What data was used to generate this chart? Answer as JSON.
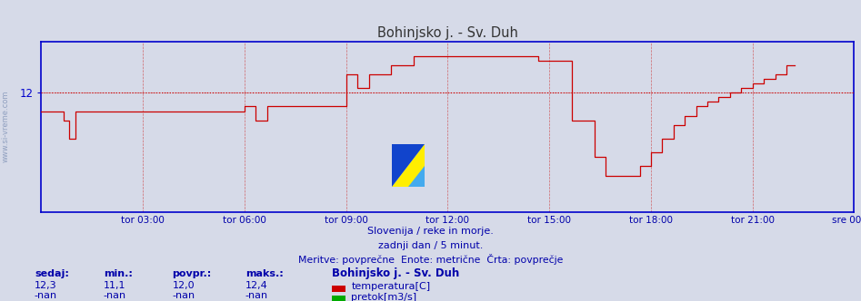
{
  "title": "Bohinjsko j. - Sv. Duh",
  "bg_color": "#d6dae8",
  "plot_bg_color": "#d6dae8",
  "line_color": "#cc0000",
  "avg_line_color": "#cc0000",
  "avg_value": 12.0,
  "axis_color": "#0000cc",
  "grid_color_v": "#cc3333",
  "grid_color_h": "#cc3333",
  "text_color": "#0000aa",
  "ymin": 10.7,
  "ymax": 12.55,
  "xmin": 0,
  "xmax": 288,
  "ytick_val": 12.0,
  "ytick_label": "12",
  "xtick_positions": [
    36,
    72,
    108,
    144,
    180,
    216,
    252,
    288
  ],
  "xtick_labels": [
    "tor 03:00",
    "tor 06:00",
    "tor 09:00",
    "tor 12:00",
    "tor 15:00",
    "tor 18:00",
    "tor 21:00",
    "sre 00:00"
  ],
  "subtitle1": "Slovenija / reke in morje.",
  "subtitle2": "zadnji dan / 5 minut.",
  "subtitle3": "Meritve: povprečne  Enote: metrične  Črta: povprečje",
  "legend_title": "Bohinjsko j. - Sv. Duh",
  "legend_items": [
    {
      "label": "temperatura[C]",
      "color": "#cc0000"
    },
    {
      "label": "pretok[m3/s]",
      "color": "#00aa00"
    }
  ],
  "stats_headers": [
    "sedaj:",
    "min.:",
    "povpr.:",
    "maks.:"
  ],
  "stats_temp": [
    "12,3",
    "11,1",
    "12,0",
    "12,4"
  ],
  "stats_flow": [
    "-nan",
    "-nan",
    "-nan",
    "-nan"
  ],
  "watermark": "www.si-vreme.com",
  "temp_data": [
    11.8,
    11.8,
    11.8,
    11.8,
    11.8,
    11.8,
    11.8,
    11.8,
    11.7,
    11.7,
    11.5,
    11.5,
    11.8,
    11.8,
    11.8,
    11.8,
    11.8,
    11.8,
    11.8,
    11.8,
    11.8,
    11.8,
    11.8,
    11.8,
    11.8,
    11.8,
    11.8,
    11.8,
    11.8,
    11.8,
    11.8,
    11.8,
    11.8,
    11.8,
    11.8,
    11.8,
    11.8,
    11.8,
    11.8,
    11.8,
    11.8,
    11.8,
    11.8,
    11.8,
    11.8,
    11.8,
    11.8,
    11.8,
    11.8,
    11.8,
    11.8,
    11.8,
    11.8,
    11.8,
    11.8,
    11.8,
    11.8,
    11.8,
    11.8,
    11.8,
    11.8,
    11.8,
    11.8,
    11.8,
    11.8,
    11.8,
    11.8,
    11.8,
    11.8,
    11.8,
    11.8,
    11.8,
    11.85,
    11.85,
    11.85,
    11.85,
    11.7,
    11.7,
    11.7,
    11.7,
    11.85,
    11.85,
    11.85,
    11.85,
    11.85,
    11.85,
    11.85,
    11.85,
    11.85,
    11.85,
    11.85,
    11.85,
    11.85,
    11.85,
    11.85,
    11.85,
    11.85,
    11.85,
    11.85,
    11.85,
    11.85,
    11.85,
    11.85,
    11.85,
    11.85,
    11.85,
    11.85,
    11.85,
    12.2,
    12.2,
    12.2,
    12.2,
    12.05,
    12.05,
    12.05,
    12.05,
    12.2,
    12.2,
    12.2,
    12.2,
    12.2,
    12.2,
    12.2,
    12.2,
    12.3,
    12.3,
    12.3,
    12.3,
    12.3,
    12.3,
    12.3,
    12.3,
    12.4,
    12.4,
    12.4,
    12.4,
    12.4,
    12.4,
    12.4,
    12.4,
    12.4,
    12.4,
    12.4,
    12.4,
    12.4,
    12.4,
    12.4,
    12.4,
    12.4,
    12.4,
    12.4,
    12.4,
    12.4,
    12.4,
    12.4,
    12.4,
    12.4,
    12.4,
    12.4,
    12.4,
    12.4,
    12.4,
    12.4,
    12.4,
    12.4,
    12.4,
    12.4,
    12.4,
    12.4,
    12.4,
    12.4,
    12.4,
    12.4,
    12.4,
    12.4,
    12.4,
    12.35,
    12.35,
    12.35,
    12.35,
    12.35,
    12.35,
    12.35,
    12.35,
    12.35,
    12.35,
    12.35,
    12.35,
    11.7,
    11.7,
    11.7,
    11.7,
    11.7,
    11.7,
    11.7,
    11.7,
    11.3,
    11.3,
    11.3,
    11.3,
    11.1,
    11.1,
    11.1,
    11.1,
    11.1,
    11.1,
    11.1,
    11.1,
    11.1,
    11.1,
    11.1,
    11.1,
    11.2,
    11.2,
    11.2,
    11.2,
    11.35,
    11.35,
    11.35,
    11.35,
    11.5,
    11.5,
    11.5,
    11.5,
    11.65,
    11.65,
    11.65,
    11.65,
    11.75,
    11.75,
    11.75,
    11.75,
    11.85,
    11.85,
    11.85,
    11.85,
    11.9,
    11.9,
    11.9,
    11.9,
    11.95,
    11.95,
    11.95,
    11.95,
    12.0,
    12.0,
    12.0,
    12.0,
    12.05,
    12.05,
    12.05,
    12.05,
    12.1,
    12.1,
    12.1,
    12.1,
    12.15,
    12.15,
    12.15,
    12.15,
    12.2,
    12.2,
    12.2,
    12.2,
    12.3,
    12.3,
    12.3,
    12.3
  ]
}
